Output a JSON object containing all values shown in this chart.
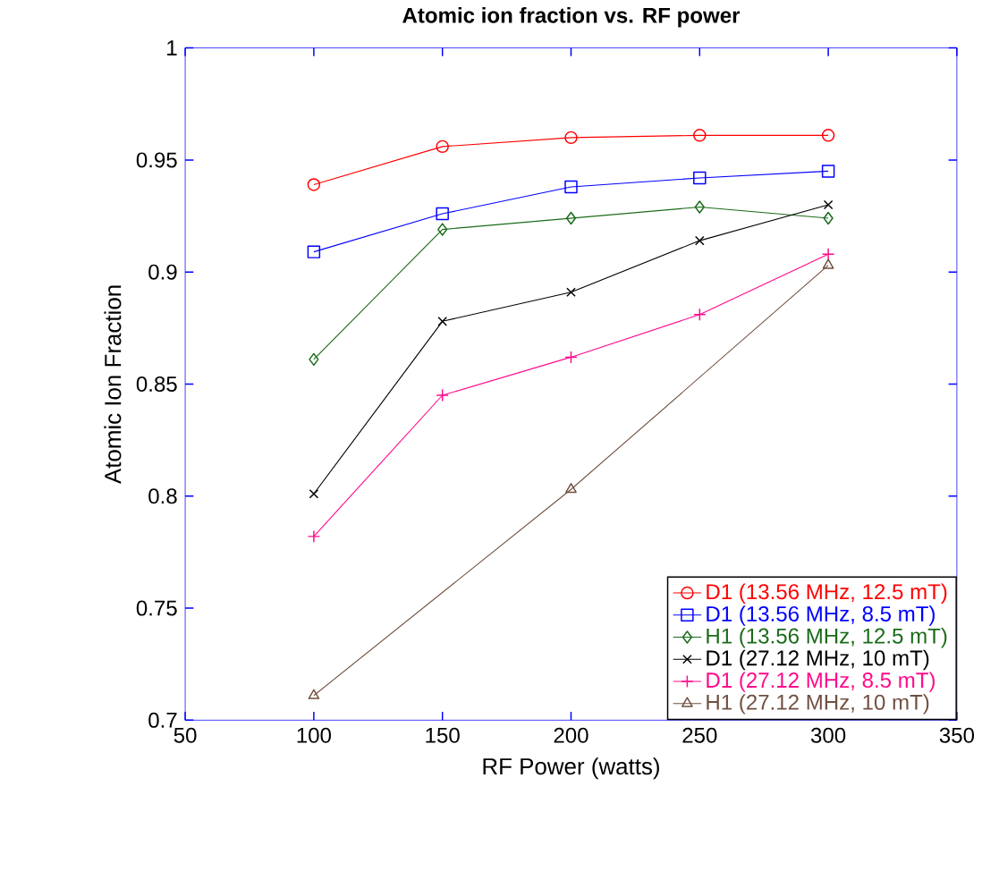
{
  "chart_data": {
    "type": "line",
    "title": "Atomic ion fraction vs. RF power",
    "xlabel": "RF Power (watts)",
    "ylabel": "Atomic Ion Fraction",
    "x": [
      100,
      150,
      200,
      250,
      300
    ],
    "series": [
      {
        "name": "D1 (13.56 MHz, 12.5 mT)",
        "color": "#ff0000",
        "marker": "circle",
        "values": [
          0.939,
          0.956,
          0.96,
          0.961,
          0.961
        ]
      },
      {
        "name": "D1 (13.56 MHz, 8.5 mT)",
        "color": "#0000ff",
        "marker": "square",
        "values": [
          0.909,
          0.926,
          0.938,
          0.942,
          0.945
        ]
      },
      {
        "name": "H1 (13.56 MHz, 12.5 mT)",
        "color": "#1a6b1a",
        "marker": "diamond",
        "values": [
          0.861,
          0.919,
          0.924,
          0.929,
          0.924
        ]
      },
      {
        "name": "D1 (27.12 MHz, 10 mT)",
        "color": "#000000",
        "marker": "cross",
        "values": [
          0.801,
          0.878,
          0.891,
          0.914,
          0.93
        ]
      },
      {
        "name": "D1 (27.12 MHz, 8.5 mT)",
        "color": "#ff0a8c",
        "marker": "plus",
        "values": [
          0.782,
          0.845,
          0.862,
          0.881,
          0.908
        ]
      },
      {
        "name": "H1 (27.12 MHz, 10 mT)",
        "color": "#705040",
        "marker": "triangle",
        "x": [
          100,
          200,
          300
        ],
        "values": [
          0.711,
          0.803,
          0.903
        ]
      }
    ],
    "xlim": [
      50,
      350
    ],
    "ylim": [
      0.7,
      1
    ],
    "xticks": [
      50,
      100,
      150,
      200,
      250,
      300,
      350
    ],
    "yticks": [
      0.7,
      0.75,
      0.8,
      0.85,
      0.9,
      0.95,
      1
    ],
    "legend": "bottom right",
    "line_style": "solid"
  }
}
